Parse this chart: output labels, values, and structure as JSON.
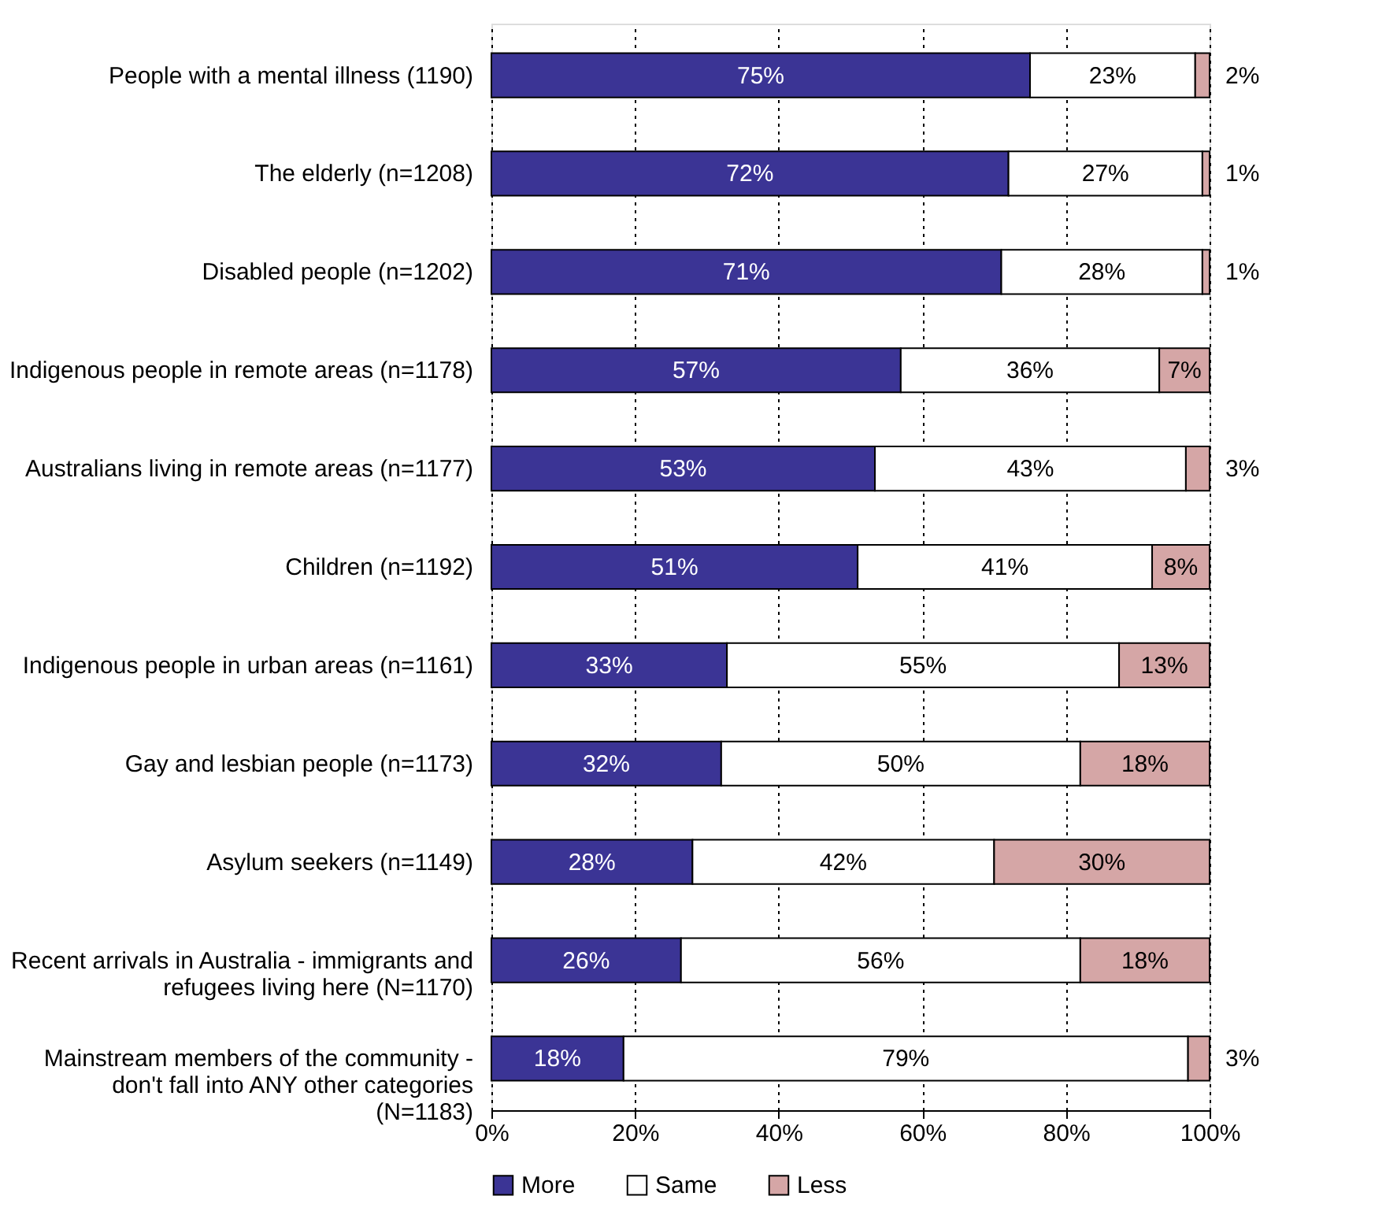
{
  "chart_data": {
    "type": "bar",
    "orientation": "horizontal",
    "stacked": true,
    "categories": [
      "People with a mental illness (1190)",
      "The elderly (n=1208)",
      "Disabled people (n=1202)",
      "Indigenous people in remote areas (n=1178)",
      "Australians living in remote areas (n=1177)",
      "Children (n=1192)",
      "Indigenous people in urban areas (n=1161)",
      "Gay and lesbian people (n=1173)",
      "Asylum seekers (n=1149)",
      "Recent arrivals in Australia - immigrants and\nrefugees living here (N=1170)",
      "Mainstream members of the community -\ndon't fall into ANY other categories\n(N=1183)"
    ],
    "series": [
      {
        "name": "More",
        "color": "#3b3495",
        "values": [
          75,
          72,
          71,
          57,
          53.4,
          51,
          32.8,
          32,
          28,
          26.4,
          18.4
        ],
        "value_labels": [
          "75%",
          "72%",
          "71%",
          "57%",
          "53%",
          "51%",
          "33%",
          "32%",
          "28%",
          "26%",
          "18%"
        ]
      },
      {
        "name": "Same",
        "color": "#ffffff",
        "values": [
          23,
          27,
          28,
          36,
          43.3,
          41,
          54.6,
          50,
          42,
          55.6,
          78.6
        ],
        "value_labels": [
          "23%",
          "27%",
          "28%",
          "36%",
          "43%",
          "41%",
          "55%",
          "50%",
          "42%",
          "56%",
          "79%"
        ]
      },
      {
        "name": "Less",
        "color": "#d5a6a6",
        "values": [
          2,
          1,
          1,
          7,
          3.3,
          8,
          12.6,
          18,
          30,
          18,
          3
        ],
        "value_labels": [
          "2%",
          "1%",
          "1%",
          "7%",
          "3%",
          "8%",
          "13%",
          "18%",
          "30%",
          "18%",
          "3%"
        ]
      }
    ],
    "xlim": [
      0,
      100
    ],
    "xticks": [
      {
        "value": 0,
        "label": "0%"
      },
      {
        "value": 20,
        "label": "20%"
      },
      {
        "value": 40,
        "label": "40%"
      },
      {
        "value": 60,
        "label": "60%"
      },
      {
        "value": 80,
        "label": "80%"
      },
      {
        "value": 100,
        "label": "100%"
      }
    ],
    "grid": "x",
    "legend": "bottom"
  }
}
